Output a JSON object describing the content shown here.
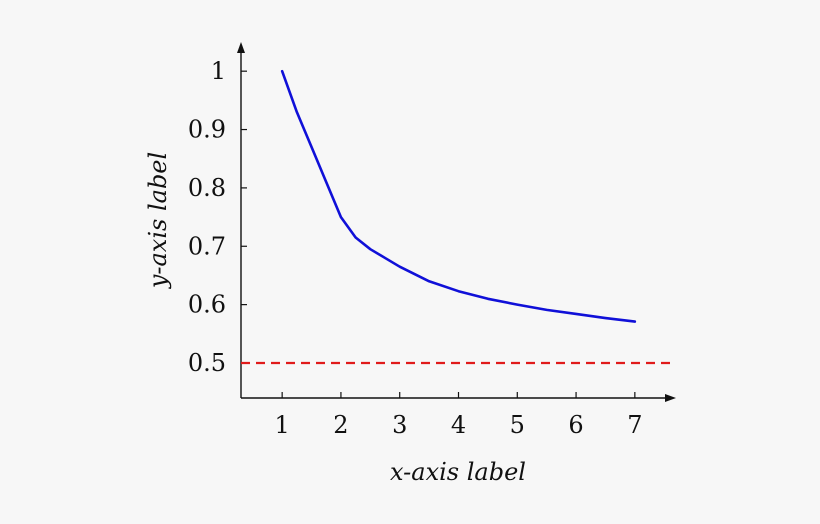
{
  "chart_data": {
    "type": "line",
    "xlabel": "x-axis label",
    "ylabel": "y-axis label",
    "x_ticks": [
      1,
      2,
      3,
      4,
      5,
      6,
      7
    ],
    "y_ticks": [
      0.5,
      0.6,
      0.7,
      0.8,
      0.9,
      1
    ],
    "x_tick_labels": [
      "1",
      "2",
      "3",
      "4",
      "5",
      "6",
      "7"
    ],
    "y_tick_labels": [
      "0.5",
      "0.6",
      "0.7",
      "0.8",
      "0.9",
      "1"
    ],
    "xlim": [
      0.3,
      7.7
    ],
    "ylim": [
      0.44,
      1.05
    ],
    "grid": false,
    "series": [
      {
        "color": "#1010d8",
        "style": "solid",
        "x": [
          1,
          1.25,
          1.5,
          1.75,
          2,
          2.25,
          2.5,
          2.75,
          3,
          3.5,
          4,
          4.5,
          5,
          5.5,
          6,
          6.5,
          7
        ],
        "y": [
          1,
          0.93,
          0.87,
          0.81,
          0.75,
          0.715,
          0.695,
          0.68,
          0.665,
          0.64,
          0.623,
          0.61,
          0.6,
          0.591,
          0.584,
          0.577,
          0.571
        ]
      }
    ],
    "reference_lines": [
      {
        "axis": "y",
        "value": 0.5,
        "color": "#e01b1b",
        "style": "dashed"
      }
    ]
  }
}
